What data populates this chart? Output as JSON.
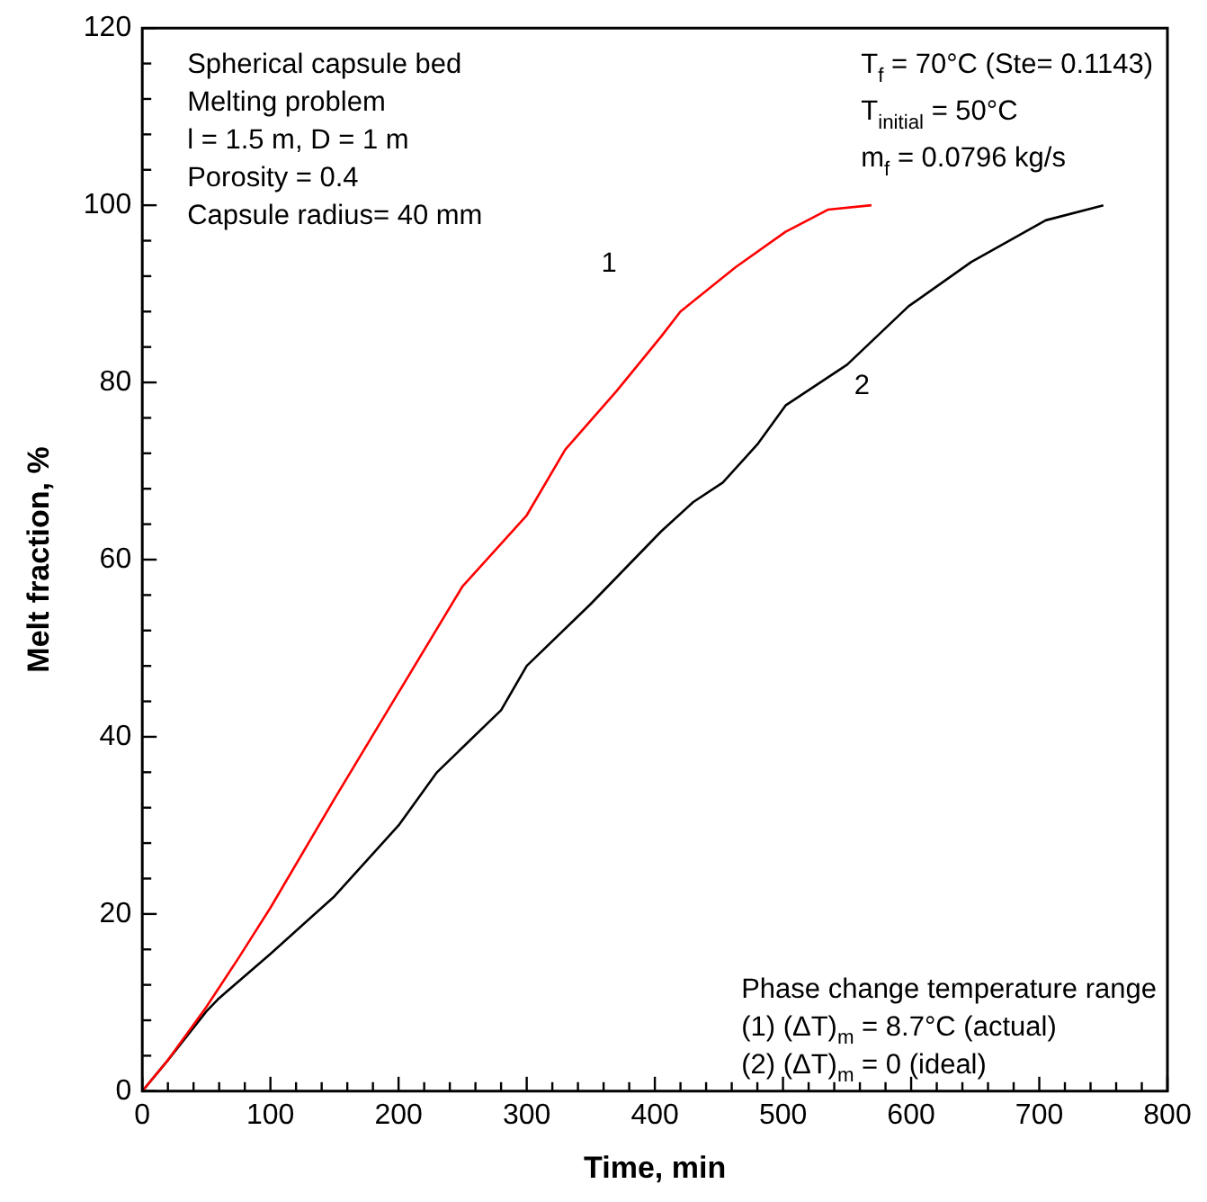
{
  "chart_data": {
    "type": "line",
    "xlabel": "Time, min",
    "ylabel": "Melt fraction, %",
    "xlim": [
      0,
      800
    ],
    "xticks": [
      0,
      100,
      200,
      300,
      400,
      500,
      600,
      700,
      800
    ],
    "ylim": [
      0,
      120
    ],
    "yticks": [
      0,
      20,
      40,
      60,
      80,
      100,
      120
    ],
    "grid": false,
    "legend": false,
    "marker": "none",
    "line_style": "solid",
    "series": [
      {
        "name": "1",
        "color": "#ff0000",
        "x": [
          0,
          20,
          50,
          75,
          100,
          150,
          200,
          250,
          300,
          330,
          370,
          405,
          420,
          463,
          502,
          535,
          569
        ],
        "values": [
          0,
          3.5,
          9.5,
          15,
          20.7,
          33,
          45,
          57,
          65,
          72.4,
          79,
          85.2,
          88,
          93,
          97,
          99.5,
          100
        ]
      },
      {
        "name": "2",
        "color": "#000000",
        "x": [
          0,
          20,
          50,
          60,
          100,
          150,
          200,
          230,
          280,
          300,
          350,
          405,
          430,
          453,
          480,
          502,
          550,
          598,
          647,
          705,
          750
        ],
        "values": [
          0,
          3.5,
          9,
          10.5,
          15.5,
          22,
          30,
          36,
          43,
          48,
          55,
          63.2,
          66.5,
          68.7,
          73,
          77.4,
          82,
          88.6,
          93.6,
          98.3,
          100
        ]
      }
    ],
    "annotations": [
      "Spherical capsule bed",
      "Melting problem",
      "l = 1.5 m, D = 1 m",
      "Porosity = 0.4",
      "Capsule radius= 40 mm",
      "T$_{f}$ = 70°C (Ste= 0.1143)",
      "T$_{initial}$ = 50°C",
      "m$_{f}$ = 0.0796 kg/s",
      "Phase change temperature range",
      "(1) (ΔT)$_{m}$ = 8.7°C (actual)",
      "(2) (ΔT)$_{m}$ = 0 (ideal)"
    ]
  }
}
